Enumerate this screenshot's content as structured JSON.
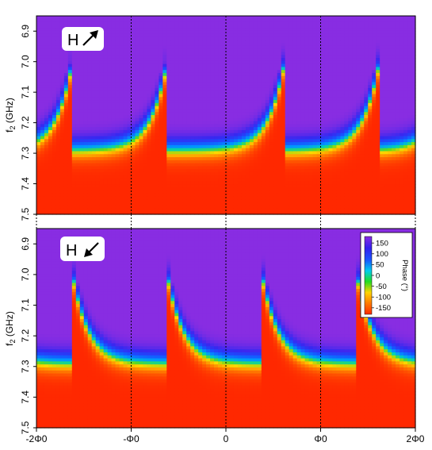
{
  "chart_data": [
    {
      "type": "heatmap",
      "panel": "top",
      "badge": {
        "letter": "H",
        "arrow": "up-right"
      },
      "ylabel": "f2 (GHz)",
      "ylabel_main": "f",
      "ylabel_sub": "2",
      "ylabel_unit": " (GHz)",
      "y_ticks": [
        "6.9",
        "7.0",
        "7.1",
        "7.2",
        "7.3",
        "7.4",
        "7.5"
      ],
      "ylim": [
        6.85,
        7.5
      ],
      "xlim": [
        -2,
        2
      ],
      "flux_jumps_at": [
        -1.62,
        -0.62,
        0.62,
        1.62
      ],
      "jump_direction": "decreasing-with-flux",
      "resonance_baseline_GHz": 7.29,
      "resonance_peak_GHz": 7.0
    },
    {
      "type": "heatmap",
      "panel": "bottom",
      "badge": {
        "letter": "H",
        "arrow": "down-left"
      },
      "ylabel": "f2 (GHz)",
      "ylabel_main": "f",
      "ylabel_sub": "2",
      "ylabel_unit": " (GHz)",
      "y_ticks": [
        "6.9",
        "7.0",
        "7.1",
        "7.2",
        "7.3",
        "7.4",
        "7.5"
      ],
      "ylim": [
        6.85,
        7.5
      ],
      "xlim": [
        -2,
        2
      ],
      "x_ticks": [
        "-2Φ0",
        "-Φ0",
        "0",
        "Φ0",
        "2Φ0"
      ],
      "x_tick_values": [
        -2,
        -1,
        0,
        1,
        2
      ],
      "flux_jumps_at": [
        -1.62,
        -0.62,
        0.38,
        1.38
      ],
      "jump_direction": "increasing-with-flux",
      "resonance_baseline_GHz": 7.29,
      "resonance_peak_GHz": 7.0,
      "colorbar": {
        "label": "Phase (°)",
        "ticks": [
          "150",
          "100",
          "50",
          "0",
          "-50",
          "-100",
          "-150"
        ],
        "tick_values": [
          150,
          100,
          50,
          0,
          -50,
          -100,
          -150
        ],
        "range": [
          -180,
          180
        ],
        "colors": [
          "#ff2a00",
          "#ff7a00",
          "#ffd400",
          "#22dd22",
          "#00ccee",
          "#1a55ff",
          "#3320ee",
          "#8a2be2"
        ]
      }
    }
  ]
}
